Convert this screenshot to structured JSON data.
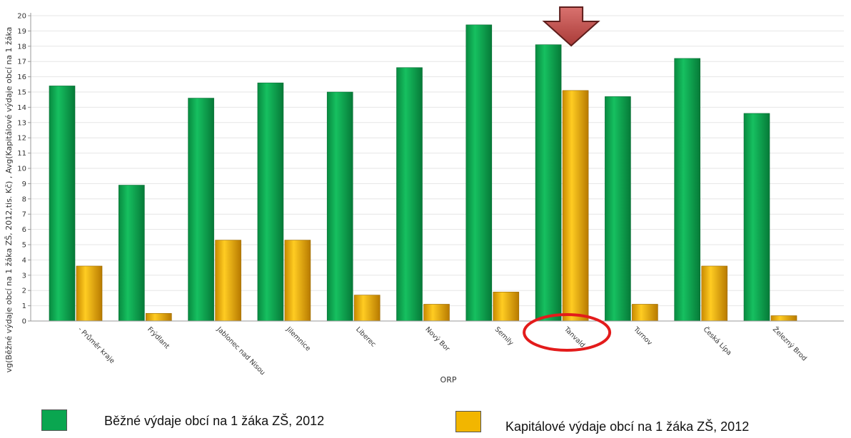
{
  "chart_data": {
    "type": "bar",
    "xlabel": "ORP",
    "ylabel": "vg(Běžné výdaje obcí na 1 žáka ZŠ, 2012,tis. Kč) , Avg(Kapitálové výdaje obcí na 1 žáka",
    "ylim": [
      0,
      20
    ],
    "yticks": [
      0,
      1,
      2,
      3,
      4,
      5,
      6,
      7,
      8,
      9,
      10,
      11,
      12,
      13,
      14,
      15,
      16,
      17,
      18,
      19,
      20
    ],
    "grid": true,
    "legend_position": "bottom",
    "categories": [
      "- Průměr kraje",
      "Frýdlant",
      "Jablonec nad Nisou",
      "Jilemnice",
      "Liberec",
      "Nový Bor",
      "Semily",
      "Tanvald",
      "Turnov",
      "Česká Lípa",
      "Železný Brod"
    ],
    "series": [
      {
        "name": "Běžné výdaje obcí na 1 žáka ZŠ, 2012",
        "color": "#0aa650",
        "values": [
          15.4,
          8.9,
          14.6,
          15.6,
          15.0,
          16.6,
          19.4,
          18.1,
          14.7,
          17.2,
          13.6
        ]
      },
      {
        "name": "Kapitálové výdaje obcí na 1 žáka ZŠ, 2012",
        "color": "#f2b600",
        "values": [
          3.6,
          0.5,
          5.3,
          5.3,
          1.7,
          1.1,
          1.9,
          15.1,
          1.1,
          3.6,
          0.35
        ]
      }
    ],
    "highlight": {
      "category": "Tanvald",
      "arrow_color": "#c0504d",
      "circle_color": "#e31b1b"
    }
  }
}
